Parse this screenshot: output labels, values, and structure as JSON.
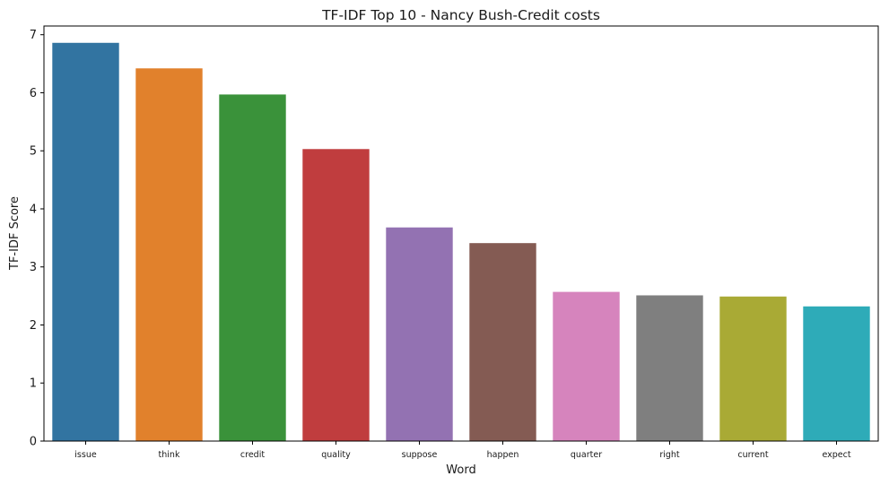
{
  "chart_data": {
    "type": "bar",
    "title": "TF-IDF Top 10 - Nancy Bush-Credit costs",
    "xlabel": "Word",
    "ylabel": "TF-IDF Score",
    "categories": [
      "issue",
      "think",
      "credit",
      "quality",
      "suppose",
      "happen",
      "quarter",
      "right",
      "current",
      "expect"
    ],
    "values": [
      6.86,
      6.42,
      5.97,
      5.03,
      3.68,
      3.41,
      2.57,
      2.51,
      2.49,
      2.32
    ],
    "colors": [
      "#3274a1",
      "#e1812c",
      "#3a923a",
      "#c03d3e",
      "#9372b2",
      "#845b53",
      "#d684bd",
      "#7f7f7f",
      "#a9aa35",
      "#2eabb8"
    ],
    "ylim": [
      0,
      7.15
    ],
    "yticks": [
      0,
      1,
      2,
      3,
      4,
      5,
      6,
      7
    ],
    "grid": false,
    "legend": "none"
  }
}
